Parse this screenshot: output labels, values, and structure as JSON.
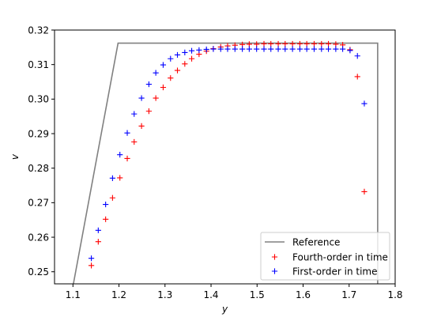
{
  "chart_data": {
    "type": "scatter",
    "xlabel": "y",
    "ylabel": "v",
    "xlim": [
      1.06,
      1.8
    ],
    "ylim": [
      0.2465,
      0.32
    ],
    "grid": false,
    "legend_position": "bottom-right",
    "x_ticks": [
      1.1,
      1.2,
      1.3,
      1.4,
      1.5,
      1.6,
      1.7,
      1.8
    ],
    "x_tick_labels": [
      "1.1",
      "1.2",
      "1.3",
      "1.4",
      "1.5",
      "1.6",
      "1.7",
      "1.8"
    ],
    "y_ticks": [
      0.25,
      0.26,
      0.27,
      0.28,
      0.29,
      0.3,
      0.31,
      0.32
    ],
    "y_tick_labels": [
      "0.25",
      "0.26",
      "0.27",
      "0.28",
      "0.29",
      "0.30",
      "0.31",
      "0.32"
    ],
    "series": [
      {
        "name": "Reference",
        "kind": "line",
        "color": "#808080",
        "x": [
          1.101,
          1.198,
          1.762,
          1.762
        ],
        "y": [
          0.2465,
          0.3162,
          0.3162,
          0.2465
        ]
      },
      {
        "name": "Fourth-order in time",
        "kind": "marker",
        "marker": "plus",
        "color": "#ff0000",
        "x": [
          1.14,
          1.155,
          1.171,
          1.186,
          1.202,
          1.218,
          1.233,
          1.249,
          1.265,
          1.28,
          1.296,
          1.312,
          1.327,
          1.343,
          1.358,
          1.374,
          1.39,
          1.405,
          1.421,
          1.436,
          1.452,
          1.468,
          1.483,
          1.499,
          1.515,
          1.53,
          1.546,
          1.561,
          1.577,
          1.593,
          1.608,
          1.624,
          1.64,
          1.655,
          1.671,
          1.686,
          1.702,
          1.718,
          1.733
        ],
        "y": [
          0.2518,
          0.2587,
          0.2652,
          0.2714,
          0.2772,
          0.2828,
          0.2876,
          0.2922,
          0.2965,
          0.3003,
          0.3034,
          0.3061,
          0.3083,
          0.3102,
          0.3117,
          0.313,
          0.3139,
          0.3146,
          0.3151,
          0.3154,
          0.3156,
          0.3158,
          0.3159,
          0.3159,
          0.316,
          0.316,
          0.316,
          0.316,
          0.316,
          0.316,
          0.316,
          0.316,
          0.316,
          0.316,
          0.3159,
          0.3157,
          0.3143,
          0.3065,
          0.2732
        ]
      },
      {
        "name": "First-order in time",
        "kind": "marker",
        "marker": "plus",
        "color": "#0000ff",
        "x": [
          1.14,
          1.155,
          1.171,
          1.186,
          1.202,
          1.218,
          1.233,
          1.249,
          1.265,
          1.28,
          1.296,
          1.312,
          1.327,
          1.343,
          1.358,
          1.374,
          1.39,
          1.405,
          1.421,
          1.436,
          1.452,
          1.468,
          1.483,
          1.499,
          1.515,
          1.53,
          1.546,
          1.561,
          1.577,
          1.593,
          1.608,
          1.624,
          1.64,
          1.655,
          1.671,
          1.686,
          1.702,
          1.718,
          1.733
        ],
        "y": [
          0.2539,
          0.262,
          0.2695,
          0.2771,
          0.2839,
          0.2902,
          0.2957,
          0.3003,
          0.3043,
          0.3076,
          0.3099,
          0.3117,
          0.3128,
          0.3135,
          0.314,
          0.3142,
          0.3144,
          0.3145,
          0.3145,
          0.3145,
          0.3145,
          0.3145,
          0.3145,
          0.3145,
          0.3145,
          0.3145,
          0.3145,
          0.3145,
          0.3145,
          0.3145,
          0.3145,
          0.3145,
          0.3145,
          0.3145,
          0.3145,
          0.3145,
          0.3141,
          0.3125,
          0.2987
        ]
      }
    ]
  }
}
